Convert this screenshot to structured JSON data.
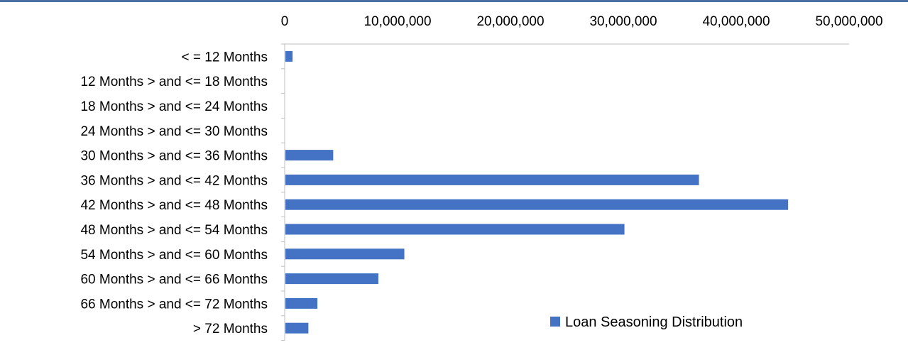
{
  "chart_data": {
    "type": "bar",
    "orientation": "horizontal",
    "categories": [
      "< = 12 Months",
      "12 Months > and <= 18 Months",
      "18 Months > and <= 24 Months",
      "24 Months > and <= 30 Months",
      "30 Months > and <= 36 Months",
      "36 Months > and <= 42 Months",
      "42 Months > and <= 48 Months",
      "48 Months > and <= 54 Months",
      "54 Months > and <= 60 Months",
      "60 Months > and <= 66 Months",
      "66 Months > and <= 72 Months",
      "> 72 Months"
    ],
    "series": [
      {
        "name": "Loan Seasoning Distribution",
        "values": [
          700000,
          0,
          0,
          0,
          4300000,
          36700000,
          44600000,
          30100000,
          10600000,
          8300000,
          2900000,
          2100000
        ]
      }
    ],
    "xlim": [
      0,
      50000000
    ],
    "xticks": [
      0,
      10000000,
      20000000,
      30000000,
      40000000,
      50000000
    ],
    "xtick_labels": [
      "0",
      "10,000,000",
      "20,000,000",
      "30,000,000",
      "40,000,000",
      "50,000,000"
    ],
    "x_axis_position": "top",
    "grid": false,
    "legend_position": "bottom-right",
    "colors": {
      "bar": "#4472c4",
      "axis": "#bfbfbf",
      "frame": "#4a6fa0"
    }
  }
}
